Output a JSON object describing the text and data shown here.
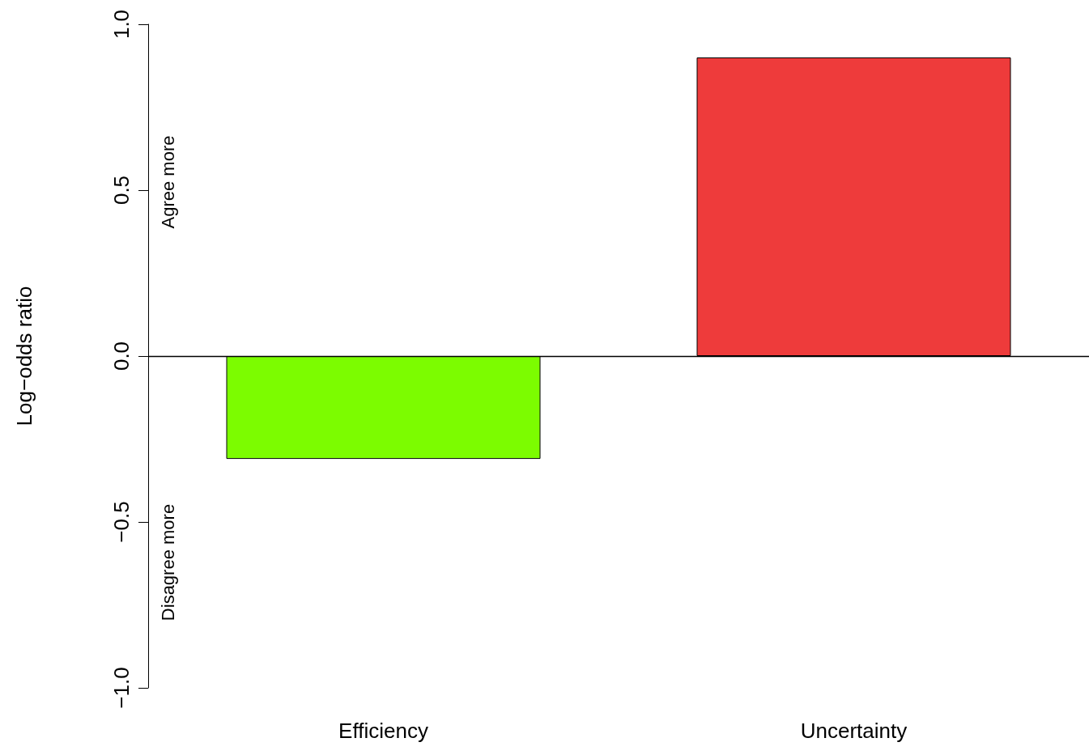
{
  "chart_data": {
    "type": "bar",
    "ylabel": "Log−odds ratio",
    "categories": [
      "Efficiency",
      "Uncertainty"
    ],
    "values": [
      -0.31,
      0.9
    ],
    "colors": [
      "#7cfc00",
      "#ee3b3b"
    ],
    "ylim": [
      -1,
      1
    ],
    "yticks": [
      {
        "value": -1,
        "label": "−1.0"
      },
      {
        "value": -0.5,
        "label": "−0.5"
      },
      {
        "value": 0,
        "label": "0.0"
      },
      {
        "value": 0.5,
        "label": "0.5"
      },
      {
        "value": 1,
        "label": "1.0"
      }
    ],
    "grid": false,
    "ref_lines": [
      {
        "axis": "y",
        "value": 0,
        "color": "#000000"
      }
    ],
    "annotations": [
      "Agree more",
      "Disagree more"
    ]
  }
}
